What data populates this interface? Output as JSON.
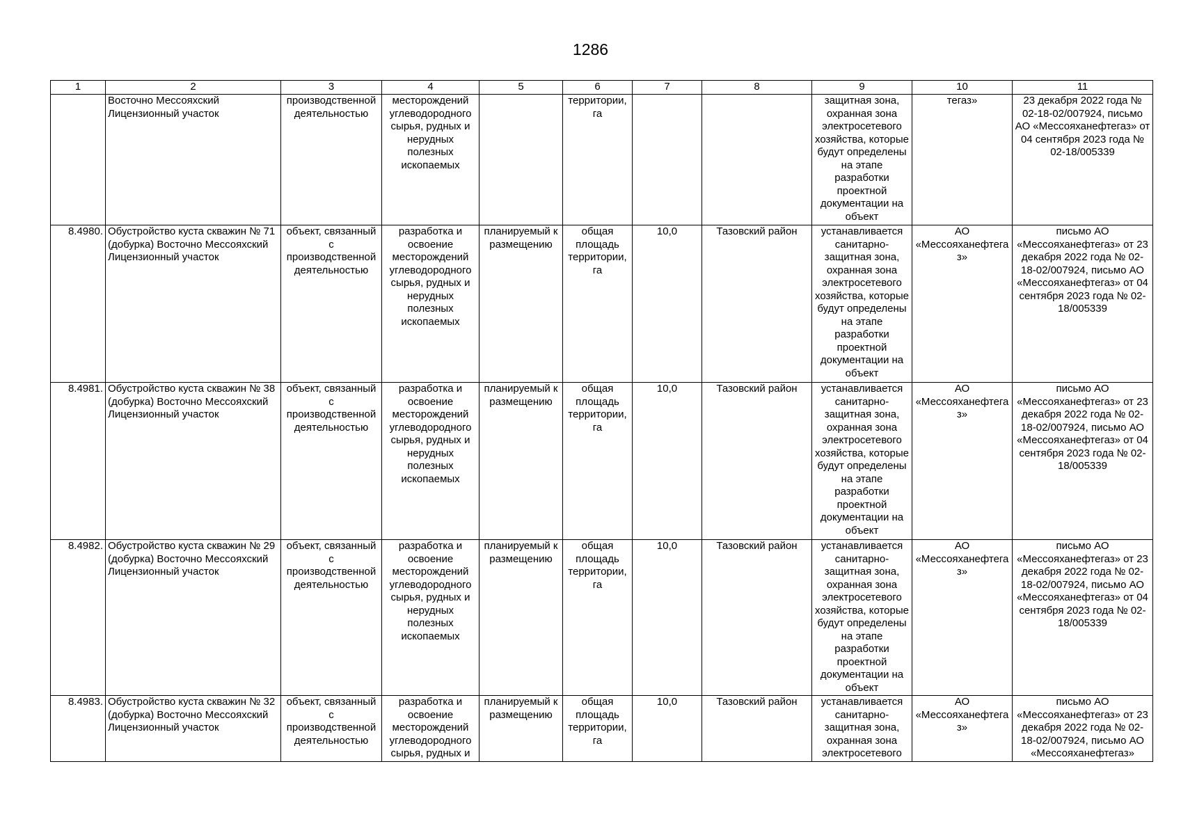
{
  "header": {
    "page_number": "1286"
  },
  "table": {
    "columns": [
      "1",
      "2",
      "3",
      "4",
      "5",
      "6",
      "7",
      "8",
      "9",
      "10",
      "11"
    ],
    "rows": [
      [
        "",
        "Восточно Мессояхский Лицензионный участок",
        "производственной деятельностью",
        "месторождений углеводородного сырья, рудных и нерудных полезных ископаемых",
        "",
        "территории, га",
        "",
        "",
        "защитная зона, охранная зона электросетевого хозяйства, которые будут определены на этапе разработки проектной документации на объект",
        "тегаз»",
        "23 декабря 2022 года № 02-18-02/007924, письмо АО «Мессояханефтегаз» от 04 сентября 2023 года № 02-18/005339"
      ],
      [
        "8.4980.",
        "Обустройство куста скважин № 71 (добурка) Восточно Мессояхский Лицензионный участок",
        "объект, связанный с производственной деятельностью",
        "разработка и освоение месторождений углеводородного сырья, рудных и нерудных полезных ископаемых",
        "планируемый к размещению",
        "общая площадь территории, га",
        "10,0",
        "Тазовский район",
        "устанавливается санитарно-защитная зона, охранная зона электросетевого хозяйства, которые будут определены на этапе разработки проектной документации на объект",
        "АО «Мессояханефтегаз»",
        "письмо АО «Мессояханефтегаз» от 23 декабря 2022 года № 02-18-02/007924, письмо АО «Мессояханефтегаз» от 04 сентября 2023 года № 02-18/005339"
      ],
      [
        "8.4981.",
        "Обустройство куста скважин № 38 (добурка) Восточно Мессояхский Лицензионный участок",
        "объект, связанный с производственной деятельностью",
        "разработка и освоение месторождений углеводородного сырья, рудных и нерудных полезных ископаемых",
        "планируемый к размещению",
        "общая площадь территории, га",
        "10,0",
        "Тазовский район",
        "устанавливается санитарно-защитная зона, охранная зона электросетевого хозяйства, которые будут определены на этапе разработки проектной документации на объект",
        "АО «Мессояханефтегаз»",
        "письмо АО «Мессояханефтегаз» от 23 декабря 2022 года № 02-18-02/007924, письмо АО «Мессояханефтегаз» от 04 сентября 2023 года № 02-18/005339"
      ],
      [
        "8.4982.",
        "Обустройство куста скважин № 29 (добурка) Восточно Мессояхский Лицензионный участок",
        "объект, связанный с производственной деятельностью",
        "разработка и освоение месторождений углеводородного сырья, рудных и нерудных полезных ископаемых",
        "планируемый к размещению",
        "общая площадь территории, га",
        "10,0",
        "Тазовский район",
        "устанавливается санитарно-защитная зона, охранная зона электросетевого хозяйства, которые будут определены на этапе разработки проектной документации на объект",
        "АО «Мессояханефтегаз»",
        "письмо АО «Мессояханефтегаз» от 23 декабря 2022 года № 02-18-02/007924, письмо АО «Мессояханефтегаз» от 04 сентября 2023 года № 02-18/005339"
      ],
      [
        "8.4983.",
        "Обустройство куста скважин № 32 (добурка) Восточно Мессояхский Лицензионный участок",
        "объект, связанный с производственной деятельностью",
        "разработка и освоение месторождений углеводородного сырья, рудных и",
        "планируемый к размещению",
        "общая площадь территории, га",
        "10,0",
        "Тазовский район",
        "устанавливается санитарно-защитная зона, охранная зона электросетевого",
        "АО «Мессояханефтегаз»",
        "письмо АО «Мессояханефтегаз» от 23 декабря 2022 года № 02-18-02/007924, письмо АО «Мессояханефтегаз»"
      ]
    ]
  }
}
